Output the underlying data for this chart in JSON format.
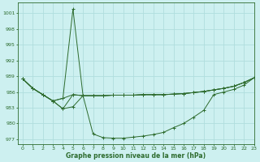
{
  "title": "Graphe pression niveau de la mer (hPa)",
  "background_color": "#cdf0f0",
  "grid_color": "#b0dddd",
  "line_color": "#2d6b2d",
  "xlim": [
    -0.5,
    23
  ],
  "ylim": [
    976,
    1003
  ],
  "yticks": [
    977,
    980,
    983,
    986,
    989,
    992,
    995,
    998,
    1001
  ],
  "xticks": [
    0,
    1,
    2,
    3,
    4,
    5,
    6,
    7,
    8,
    9,
    10,
    11,
    12,
    13,
    14,
    15,
    16,
    17,
    18,
    19,
    20,
    21,
    22,
    23
  ],
  "series": [
    [
      988.5,
      986.7,
      985.5,
      984.3,
      984.8,
      1001.8,
      985.3,
      978.0,
      977.3,
      977.2,
      977.2,
      977.4,
      977.6,
      977.9,
      978.3,
      979.2,
      980.0,
      981.2,
      982.5,
      985.5,
      986.0,
      986.5,
      987.3,
      988.7
    ],
    [
      988.5,
      986.7,
      985.5,
      984.3,
      984.8,
      985.5,
      985.3,
      985.3,
      985.3,
      985.4,
      985.4,
      985.4,
      985.5,
      985.5,
      985.5,
      985.6,
      985.7,
      985.9,
      986.1,
      986.4,
      986.7,
      987.1,
      987.8,
      988.7
    ],
    [
      988.5,
      986.7,
      985.5,
      984.3,
      982.8,
      983.2,
      985.3,
      985.3,
      985.3,
      985.4,
      985.4,
      985.4,
      985.5,
      985.5,
      985.5,
      985.6,
      985.7,
      985.9,
      986.1,
      986.4,
      986.7,
      987.1,
      987.8,
      988.7
    ],
    [
      988.5,
      986.7,
      985.5,
      984.3,
      982.8,
      985.5,
      985.3,
      985.3,
      985.3,
      985.4,
      985.4,
      985.4,
      985.5,
      985.5,
      985.5,
      985.6,
      985.7,
      985.9,
      986.1,
      986.4,
      986.7,
      987.1,
      987.8,
      988.7
    ]
  ]
}
